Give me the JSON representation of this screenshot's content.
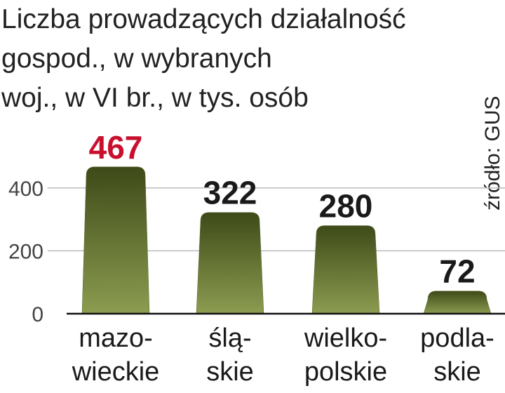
{
  "chart_data": {
    "type": "bar",
    "title": [
      "Liczba prowadzących działalność",
      "gospod., w wybranych",
      "woj., w VI br., w tys. osób"
    ],
    "source": "źródło: GUS",
    "categories": [
      "mazo-\nwieckie",
      "ślą-\nskie",
      "wielko-\npolskie",
      "podla-\nskie"
    ],
    "values": [
      467,
      322,
      280,
      72
    ],
    "color": "#56662a",
    "label_colors": [
      "#c8102e",
      "#1a1a1a",
      "#1a1a1a",
      "#1a1a1a"
    ],
    "ylim": [
      0,
      500
    ],
    "yticks": [
      0,
      200,
      400
    ],
    "grid": true
  }
}
